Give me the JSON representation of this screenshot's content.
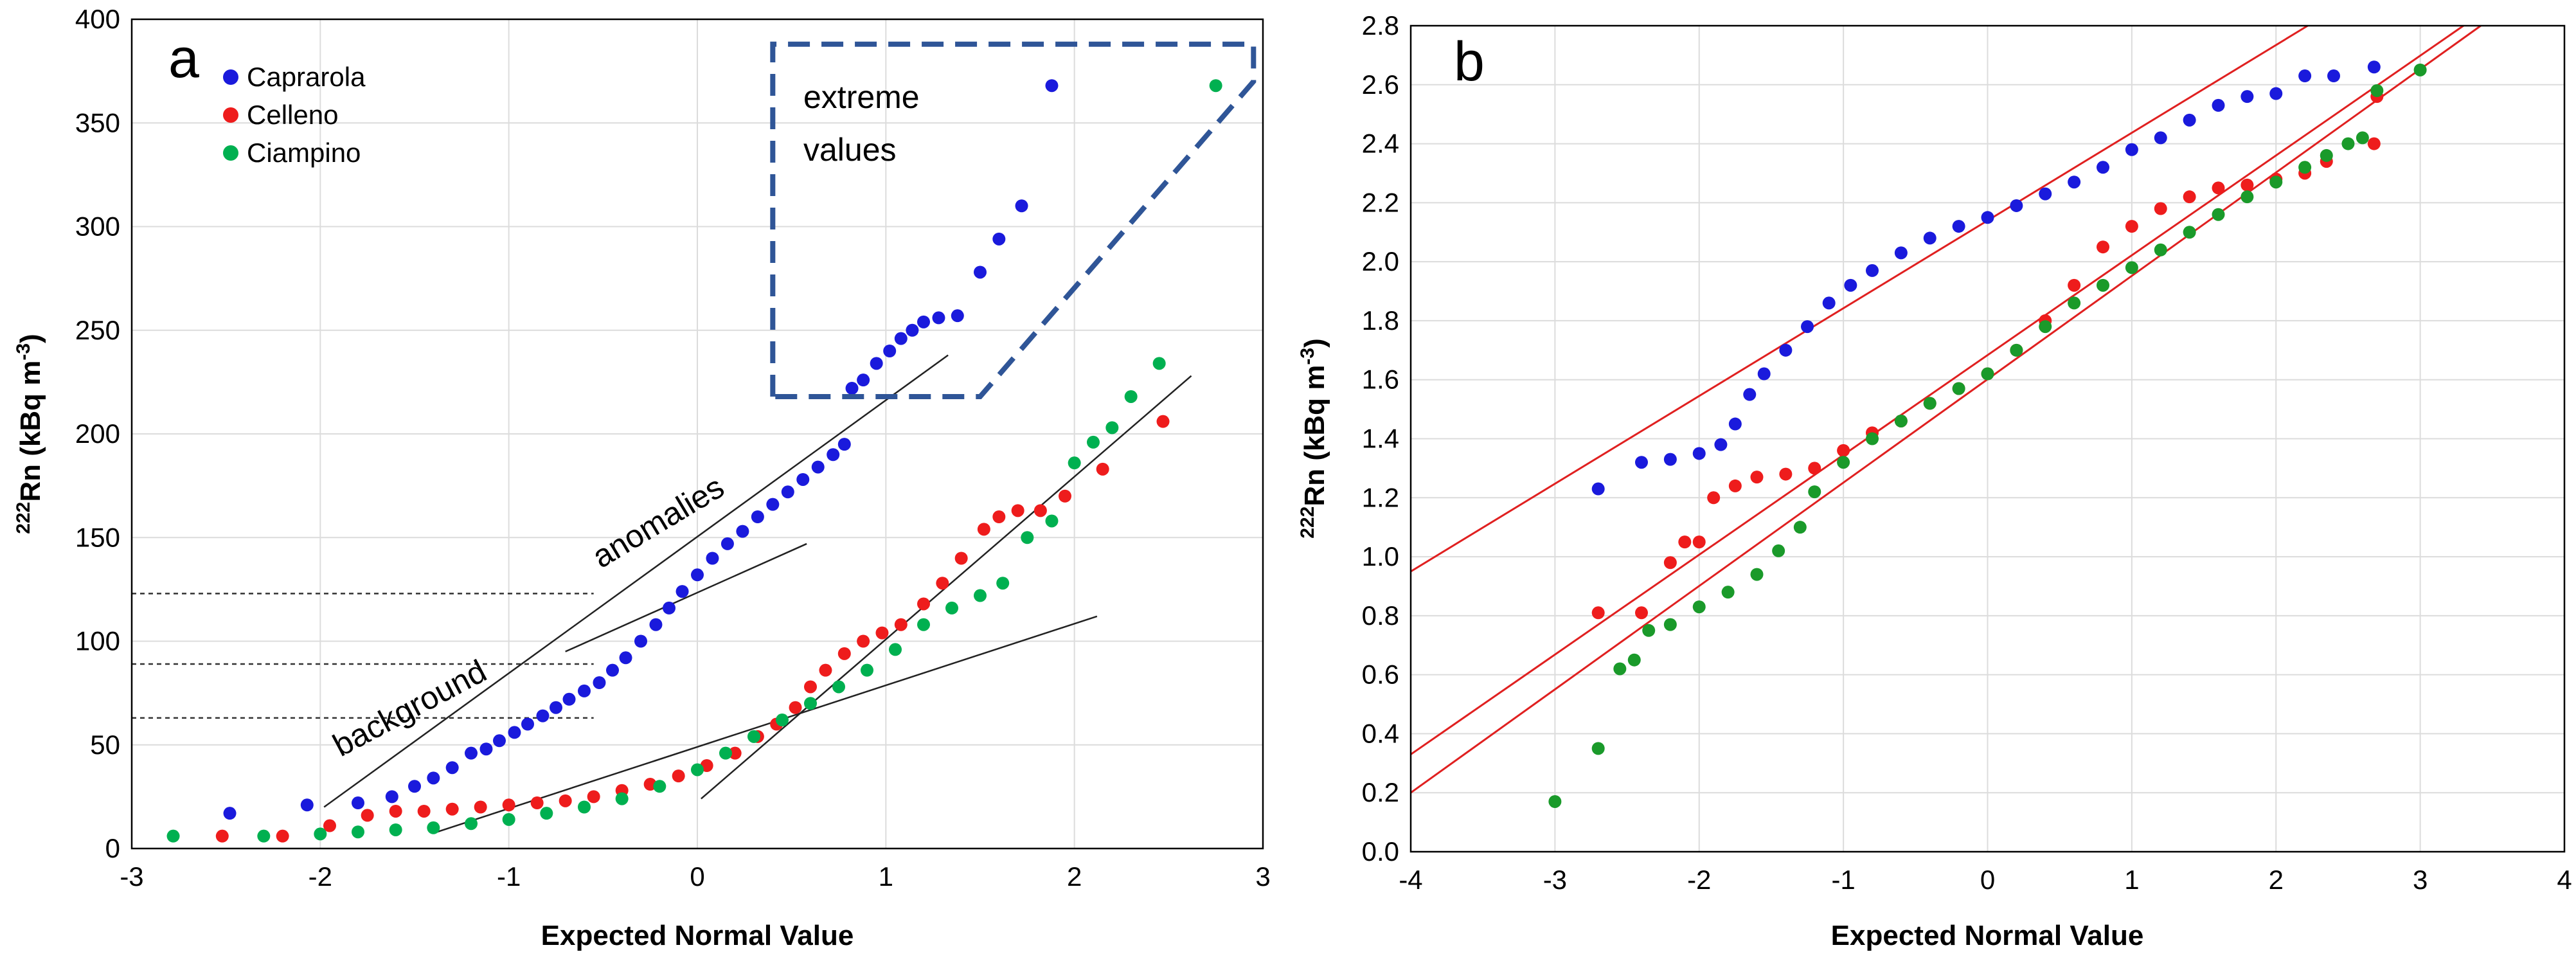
{
  "colors": {
    "caprarola": "#1a1adc",
    "celleno": "#ee1c1c",
    "ciampino": "#00b050",
    "ciampino_b": "#1a9a2a",
    "extreme_box": "#2f5597",
    "fit_line_b": "#e02020"
  },
  "chart_data": [
    {
      "type": "scatter",
      "panel": "a",
      "title": "",
      "xlabel": "Expected Normal Value",
      "ylabel_sup": "222",
      "ylabel_main": "Rn (kBq m",
      "ylabel_unit_sup": "-3",
      "ylabel_end": ")",
      "xlim": [
        -3,
        3
      ],
      "ylim": [
        0,
        400
      ],
      "xticks": [
        "-3",
        "-2",
        "-1",
        "0",
        "1",
        "2",
        "3"
      ],
      "yticks": [
        "0",
        "50",
        "100",
        "150",
        "200",
        "250",
        "300",
        "350",
        "400"
      ],
      "legend": [
        "Caprarola",
        "Celleno",
        "Ciampino"
      ],
      "annotations": {
        "extreme_values_1": "extreme",
        "extreme_values_2": "values",
        "anomalies": "anomalies",
        "background": "background"
      },
      "thresholds": [
        123,
        89,
        63
      ],
      "series": [
        {
          "name": "Caprarola",
          "points": [
            [
              -2.48,
              17
            ],
            [
              -2.07,
              21
            ],
            [
              -1.8,
              22
            ],
            [
              -1.62,
              25
            ],
            [
              -1.5,
              30
            ],
            [
              -1.4,
              34
            ],
            [
              -1.3,
              39
            ],
            [
              -1.2,
              46
            ],
            [
              -1.12,
              48
            ],
            [
              -1.05,
              52
            ],
            [
              -0.97,
              56
            ],
            [
              -0.9,
              60
            ],
            [
              -0.82,
              64
            ],
            [
              -0.75,
              68
            ],
            [
              -0.68,
              72
            ],
            [
              -0.6,
              76
            ],
            [
              -0.52,
              80
            ],
            [
              -0.45,
              86
            ],
            [
              -0.38,
              92
            ],
            [
              -0.3,
              100
            ],
            [
              -0.22,
              108
            ],
            [
              -0.15,
              116
            ],
            [
              -0.08,
              124
            ],
            [
              0.0,
              132
            ],
            [
              0.08,
              140
            ],
            [
              0.16,
              147
            ],
            [
              0.24,
              153
            ],
            [
              0.32,
              160
            ],
            [
              0.4,
              166
            ],
            [
              0.48,
              172
            ],
            [
              0.56,
              178
            ],
            [
              0.64,
              184
            ],
            [
              0.72,
              190
            ],
            [
              0.78,
              195
            ],
            [
              0.82,
              222
            ],
            [
              0.88,
              226
            ],
            [
              0.95,
              234
            ],
            [
              1.02,
              240
            ],
            [
              1.08,
              246
            ],
            [
              1.14,
              250
            ],
            [
              1.2,
              254
            ],
            [
              1.28,
              256
            ],
            [
              1.38,
              257
            ],
            [
              1.5,
              278
            ],
            [
              1.6,
              294
            ],
            [
              1.72,
              310
            ],
            [
              1.88,
              368
            ]
          ]
        },
        {
          "name": "Celleno",
          "points": [
            [
              -2.52,
              6
            ],
            [
              -2.2,
              6
            ],
            [
              -1.95,
              11
            ],
            [
              -1.75,
              16
            ],
            [
              -1.6,
              18
            ],
            [
              -1.45,
              18
            ],
            [
              -1.3,
              19
            ],
            [
              -1.15,
              20
            ],
            [
              -1.0,
              21
            ],
            [
              -0.85,
              22
            ],
            [
              -0.7,
              23
            ],
            [
              -0.55,
              25
            ],
            [
              -0.4,
              28
            ],
            [
              -0.25,
              31
            ],
            [
              -0.1,
              35
            ],
            [
              0.05,
              40
            ],
            [
              0.2,
              46
            ],
            [
              0.32,
              54
            ],
            [
              0.42,
              60
            ],
            [
              0.52,
              68
            ],
            [
              0.6,
              78
            ],
            [
              0.68,
              86
            ],
            [
              0.78,
              94
            ],
            [
              0.88,
              100
            ],
            [
              0.98,
              104
            ],
            [
              1.08,
              108
            ],
            [
              1.2,
              118
            ],
            [
              1.3,
              128
            ],
            [
              1.4,
              140
            ],
            [
              1.52,
              154
            ],
            [
              1.6,
              160
            ],
            [
              1.7,
              163
            ],
            [
              1.82,
              163
            ],
            [
              1.95,
              170
            ],
            [
              2.15,
              183
            ],
            [
              2.47,
              206
            ]
          ]
        },
        {
          "name": "Ciampino",
          "points": [
            [
              -2.78,
              6
            ],
            [
              -2.3,
              6
            ],
            [
              -2.0,
              7
            ],
            [
              -1.8,
              8
            ],
            [
              -1.6,
              9
            ],
            [
              -1.4,
              10
            ],
            [
              -1.2,
              12
            ],
            [
              -1.0,
              14
            ],
            [
              -0.8,
              17
            ],
            [
              -0.6,
              20
            ],
            [
              -0.4,
              24
            ],
            [
              -0.2,
              30
            ],
            [
              0.0,
              38
            ],
            [
              0.15,
              46
            ],
            [
              0.3,
              54
            ],
            [
              0.45,
              62
            ],
            [
              0.6,
              70
            ],
            [
              0.75,
              78
            ],
            [
              0.9,
              86
            ],
            [
              1.05,
              96
            ],
            [
              1.2,
              108
            ],
            [
              1.35,
              116
            ],
            [
              1.5,
              122
            ],
            [
              1.62,
              128
            ],
            [
              1.75,
              150
            ],
            [
              1.88,
              158
            ],
            [
              2.0,
              186
            ],
            [
              2.1,
              196
            ],
            [
              2.2,
              203
            ],
            [
              2.3,
              218
            ],
            [
              2.45,
              234
            ],
            [
              2.75,
              368
            ]
          ]
        }
      ],
      "fit_lines": [
        {
          "name": "anomalies-line",
          "from": [
            -1.98,
            20
          ],
          "to": [
            1.33,
            238
          ]
        },
        {
          "name": "background-line",
          "from": [
            -0.7,
            95
          ],
          "to": [
            0.58,
            147
          ]
        },
        {
          "name": "celleno-upper-line",
          "from": [
            0.02,
            24
          ],
          "to": [
            2.62,
            228
          ]
        },
        {
          "name": "ciampino-lower-line",
          "from": [
            -1.38,
            8
          ],
          "to": [
            2.12,
            112
          ]
        }
      ]
    },
    {
      "type": "scatter",
      "panel": "b",
      "title": "",
      "xlabel": "Expected Normal Value",
      "ylabel_sup": "222",
      "ylabel_main": "Rn (kBq m",
      "ylabel_unit_sup": "-3",
      "ylabel_end": ")",
      "xlim": [
        -4,
        4
      ],
      "ylim": [
        0,
        2.8
      ],
      "xticks": [
        "-4",
        "-3",
        "-2",
        "-1",
        "0",
        "1",
        "2",
        "3",
        "4"
      ],
      "yticks": [
        "0.0",
        "0.2",
        "0.4",
        "0.6",
        "0.8",
        "1.0",
        "1.2",
        "1.4",
        "1.6",
        "1.8",
        "2.0",
        "2.2",
        "2.4",
        "2.6",
        "2.8"
      ],
      "series": [
        {
          "name": "Caprarola",
          "points": [
            [
              -2.7,
              1.23
            ],
            [
              -2.4,
              1.32
            ],
            [
              -2.2,
              1.33
            ],
            [
              -2.0,
              1.35
            ],
            [
              -1.85,
              1.38
            ],
            [
              -1.75,
              1.45
            ],
            [
              -1.65,
              1.55
            ],
            [
              -1.55,
              1.62
            ],
            [
              -1.4,
              1.7
            ],
            [
              -1.25,
              1.78
            ],
            [
              -1.1,
              1.86
            ],
            [
              -0.95,
              1.92
            ],
            [
              -0.8,
              1.97
            ],
            [
              -0.6,
              2.03
            ],
            [
              -0.4,
              2.08
            ],
            [
              -0.2,
              2.12
            ],
            [
              0.0,
              2.15
            ],
            [
              0.2,
              2.19
            ],
            [
              0.4,
              2.23
            ],
            [
              0.6,
              2.27
            ],
            [
              0.8,
              2.32
            ],
            [
              1.0,
              2.38
            ],
            [
              1.2,
              2.42
            ],
            [
              1.4,
              2.48
            ],
            [
              1.6,
              2.53
            ],
            [
              1.8,
              2.56
            ],
            [
              2.0,
              2.57
            ],
            [
              2.2,
              2.63
            ],
            [
              2.4,
              2.63
            ],
            [
              2.68,
              2.66
            ]
          ]
        },
        {
          "name": "Celleno",
          "points": [
            [
              -2.7,
              0.81
            ],
            [
              -2.4,
              0.81
            ],
            [
              -2.2,
              0.98
            ],
            [
              -2.1,
              1.05
            ],
            [
              -2.0,
              1.05
            ],
            [
              -1.9,
              1.2
            ],
            [
              -1.75,
              1.24
            ],
            [
              -1.6,
              1.27
            ],
            [
              -1.4,
              1.28
            ],
            [
              -1.2,
              1.3
            ],
            [
              -1.0,
              1.36
            ],
            [
              -0.8,
              1.42
            ],
            [
              -0.6,
              1.46
            ],
            [
              -0.4,
              1.52
            ],
            [
              -0.2,
              1.57
            ],
            [
              0.0,
              1.62
            ],
            [
              0.2,
              1.7
            ],
            [
              0.4,
              1.8
            ],
            [
              0.6,
              1.92
            ],
            [
              0.8,
              2.05
            ],
            [
              1.0,
              2.12
            ],
            [
              1.2,
              2.18
            ],
            [
              1.4,
              2.22
            ],
            [
              1.6,
              2.25
            ],
            [
              1.8,
              2.26
            ],
            [
              2.0,
              2.28
            ],
            [
              2.2,
              2.3
            ],
            [
              2.35,
              2.34
            ],
            [
              2.68,
              2.4
            ],
            [
              2.7,
              2.56
            ]
          ]
        },
        {
          "name": "Ciampino",
          "points": [
            [
              -3.0,
              0.17
            ],
            [
              -2.7,
              0.35
            ],
            [
              -2.55,
              0.62
            ],
            [
              -2.45,
              0.65
            ],
            [
              -2.35,
              0.75
            ],
            [
              -2.2,
              0.77
            ],
            [
              -2.0,
              0.83
            ],
            [
              -1.8,
              0.88
            ],
            [
              -1.6,
              0.94
            ],
            [
              -1.45,
              1.02
            ],
            [
              -1.3,
              1.1
            ],
            [
              -1.2,
              1.22
            ],
            [
              -1.0,
              1.32
            ],
            [
              -0.8,
              1.4
            ],
            [
              -0.6,
              1.46
            ],
            [
              -0.4,
              1.52
            ],
            [
              -0.2,
              1.57
            ],
            [
              0.0,
              1.62
            ],
            [
              0.2,
              1.7
            ],
            [
              0.4,
              1.78
            ],
            [
              0.6,
              1.86
            ],
            [
              0.8,
              1.92
            ],
            [
              1.0,
              1.98
            ],
            [
              1.2,
              2.04
            ],
            [
              1.4,
              2.1
            ],
            [
              1.6,
              2.16
            ],
            [
              1.8,
              2.22
            ],
            [
              2.0,
              2.27
            ],
            [
              2.2,
              2.32
            ],
            [
              2.35,
              2.36
            ],
            [
              2.5,
              2.4
            ],
            [
              2.6,
              2.42
            ],
            [
              2.7,
              2.58
            ],
            [
              3.0,
              2.65
            ]
          ]
        }
      ],
      "fit_lines": [
        {
          "name": "caprarola-fit-line",
          "from": [
            -4,
            0.95
          ],
          "to": [
            2.22,
            2.8
          ]
        },
        {
          "name": "celleno-fit-line",
          "from": [
            -4,
            0.33
          ],
          "to": [
            3.3,
            2.8
          ]
        },
        {
          "name": "ciampino-fit-line",
          "from": [
            -4,
            0.2
          ],
          "to": [
            3.42,
            2.8
          ]
        }
      ]
    }
  ]
}
